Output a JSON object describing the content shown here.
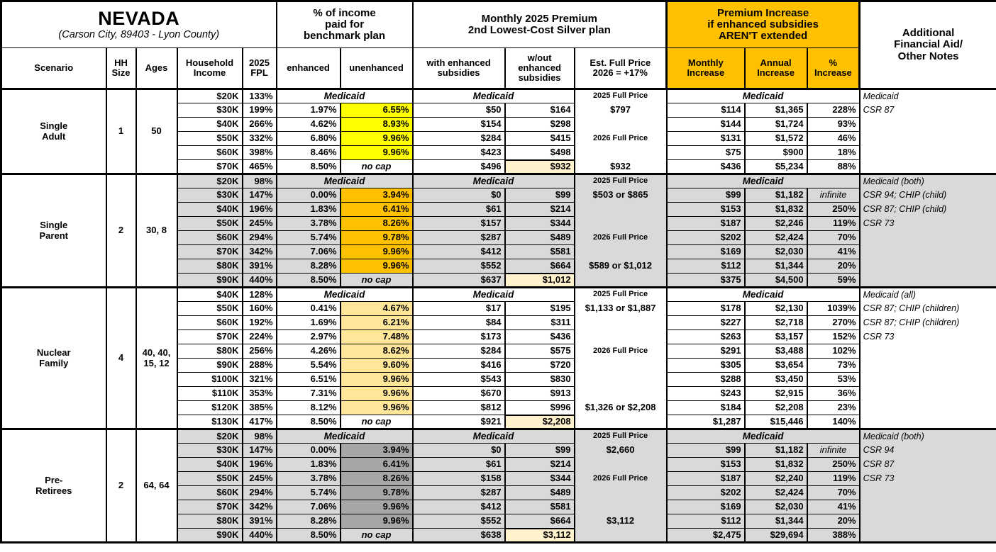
{
  "title": {
    "state": "NEVADA",
    "subtitle": "(Carson City, 89403 - Lyon County)"
  },
  "colors": {
    "header_accent": "#FFC000",
    "shaded_section": "#D9D9D9",
    "full_price_box": "#FFF2CC",
    "highlight_single_adult": "#FFFF00",
    "highlight_single_parent": "#FFC000",
    "highlight_nuclear_family": "#FFE699",
    "highlight_pre_retirees": "#A6A6A6"
  },
  "columns": {
    "scenario": "Scenario",
    "hh_size": "HH\nSize",
    "ages": "Ages",
    "income": "Household\nIncome",
    "fpl": "2025\nFPL",
    "pct_income_group": "% of income\npaid for\nbenchmark plan",
    "enhanced": "enhanced",
    "unenhanced": "unenhanced",
    "premium_group": "Monthly 2025 Premium\n2nd Lowest-Cost Silver plan",
    "with_sub": "with enhanced\nsubsidies",
    "without_sub": "w/out\nenhanced\nsubsidies",
    "est_full": "Est. Full Price\n2026 = +17%",
    "increase_group": "Premium Increase\nif enhanced subsidies\nAREN'T extended",
    "monthly": "Monthly\nIncrease",
    "annual": "Annual\nIncrease",
    "pct": "%\nIncrease",
    "notes": "Additional\nFinancial Aid/\nOther Notes"
  },
  "groups": [
    {
      "scenario": "Single\nAdult",
      "hh_size": "1",
      "ages": "50",
      "shaded": false,
      "unenhanced_highlight": "#FFFF00",
      "medicaid_label": "Medicaid",
      "rows": [
        {
          "income": "$20K",
          "fpl": "133%",
          "medicaid": true,
          "est": "2025 Full Price",
          "est_label": true,
          "note": "Medicaid"
        },
        {
          "income": "$30K",
          "fpl": "199%",
          "enhanced": "1.97%",
          "unenhanced": "6.55%",
          "with_sub": "$50",
          "without_sub": "$164",
          "est": "$797",
          "monthly": "$114",
          "annual": "$1,365",
          "pct": "228%",
          "note": "CSR 87"
        },
        {
          "income": "$40K",
          "fpl": "266%",
          "enhanced": "4.62%",
          "unenhanced": "8.93%",
          "with_sub": "$154",
          "without_sub": "$298",
          "monthly": "$144",
          "annual": "$1,724",
          "pct": "93%"
        },
        {
          "income": "$50K",
          "fpl": "332%",
          "enhanced": "6.80%",
          "unenhanced": "9.96%",
          "with_sub": "$284",
          "without_sub": "$415",
          "est": "2026 Full Price",
          "est_label": true,
          "monthly": "$131",
          "annual": "$1,572",
          "pct": "46%"
        },
        {
          "income": "$60K",
          "fpl": "398%",
          "enhanced": "8.46%",
          "unenhanced": "9.96%",
          "with_sub": "$423",
          "without_sub": "$498",
          "monthly": "$75",
          "annual": "$900",
          "pct": "18%"
        },
        {
          "income": "$70K",
          "fpl": "465%",
          "enhanced": "8.50%",
          "unenhanced": "no cap",
          "no_cap": true,
          "with_sub": "$496",
          "without_sub": "$932",
          "box": true,
          "est": "$932",
          "monthly": "$436",
          "annual": "$5,234",
          "pct": "88%"
        }
      ]
    },
    {
      "scenario": "Single\nParent",
      "hh_size": "2",
      "ages": "30, 8",
      "shaded": true,
      "unenhanced_highlight": "#FFC000",
      "medicaid_label": "Medicaid",
      "rows": [
        {
          "income": "$20K",
          "fpl": "98%",
          "medicaid": true,
          "est": "2025 Full Price",
          "est_label": true,
          "note": "Medicaid (both)"
        },
        {
          "income": "$30K",
          "fpl": "147%",
          "enhanced": "0.00%",
          "unenhanced": "3.94%",
          "with_sub": "$0",
          "without_sub": "$99",
          "est": "$503 or $865",
          "monthly": "$99",
          "annual": "$1,182",
          "pct": "infinite",
          "pct_italic": true,
          "note": "CSR 94; CHIP (child)"
        },
        {
          "income": "$40K",
          "fpl": "196%",
          "enhanced": "1.83%",
          "unenhanced": "6.41%",
          "with_sub": "$61",
          "without_sub": "$214",
          "monthly": "$153",
          "annual": "$1,832",
          "pct": "250%",
          "note": "CSR 87; CHIP (child)"
        },
        {
          "income": "$50K",
          "fpl": "245%",
          "enhanced": "3.78%",
          "unenhanced": "8.26%",
          "with_sub": "$157",
          "without_sub": "$344",
          "monthly": "$187",
          "annual": "$2,246",
          "pct": "119%",
          "note": "CSR 73"
        },
        {
          "income": "$60K",
          "fpl": "294%",
          "enhanced": "5.74%",
          "unenhanced": "9.78%",
          "with_sub": "$287",
          "without_sub": "$489",
          "est": "2026 Full Price",
          "est_label": true,
          "monthly": "$202",
          "annual": "$2,424",
          "pct": "70%"
        },
        {
          "income": "$70K",
          "fpl": "342%",
          "enhanced": "7.06%",
          "unenhanced": "9.96%",
          "with_sub": "$412",
          "without_sub": "$581",
          "monthly": "$169",
          "annual": "$2,030",
          "pct": "41%"
        },
        {
          "income": "$80K",
          "fpl": "391%",
          "enhanced": "8.28%",
          "unenhanced": "9.96%",
          "with_sub": "$552",
          "without_sub": "$664",
          "est": "$589 or $1,012",
          "monthly": "$112",
          "annual": "$1,344",
          "pct": "20%"
        },
        {
          "income": "$90K",
          "fpl": "440%",
          "enhanced": "8.50%",
          "unenhanced": "no cap",
          "no_cap": true,
          "with_sub": "$637",
          "without_sub": "$1,012",
          "box": true,
          "monthly": "$375",
          "annual": "$4,500",
          "pct": "59%"
        }
      ]
    },
    {
      "scenario": "Nuclear\nFamily",
      "hh_size": "4",
      "ages": "40, 40,\n15, 12",
      "shaded": false,
      "unenhanced_highlight": "#FFE699",
      "medicaid_label": "Medicaid",
      "rows": [
        {
          "income": "$40K",
          "fpl": "128%",
          "medicaid": true,
          "est": "2025 Full Price",
          "est_label": true,
          "note": "Medicaid (all)"
        },
        {
          "income": "$50K",
          "fpl": "160%",
          "enhanced": "0.41%",
          "unenhanced": "4.67%",
          "with_sub": "$17",
          "without_sub": "$195",
          "est": "$1,133 or $1,887",
          "monthly": "$178",
          "annual": "$2,130",
          "pct": "1039%",
          "note": "CSR 87; CHIP (children)"
        },
        {
          "income": "$60K",
          "fpl": "192%",
          "enhanced": "1.69%",
          "unenhanced": "6.21%",
          "with_sub": "$84",
          "without_sub": "$311",
          "monthly": "$227",
          "annual": "$2,718",
          "pct": "270%",
          "note": "CSR 87; CHIP (children)"
        },
        {
          "income": "$70K",
          "fpl": "224%",
          "enhanced": "2.97%",
          "unenhanced": "7.48%",
          "with_sub": "$173",
          "without_sub": "$436",
          "monthly": "$263",
          "annual": "$3,157",
          "pct": "152%",
          "note": "CSR 73"
        },
        {
          "income": "$80K",
          "fpl": "256%",
          "enhanced": "4.26%",
          "unenhanced": "8.62%",
          "with_sub": "$284",
          "without_sub": "$575",
          "est": "2026 Full Price",
          "est_label": true,
          "monthly": "$291",
          "annual": "$3,488",
          "pct": "102%"
        },
        {
          "income": "$90K",
          "fpl": "288%",
          "enhanced": "5.54%",
          "unenhanced": "9.60%",
          "with_sub": "$416",
          "without_sub": "$720",
          "monthly": "$305",
          "annual": "$3,654",
          "pct": "73%"
        },
        {
          "income": "$100K",
          "fpl": "321%",
          "enhanced": "6.51%",
          "unenhanced": "9.96%",
          "with_sub": "$543",
          "without_sub": "$830",
          "monthly": "$288",
          "annual": "$3,450",
          "pct": "53%"
        },
        {
          "income": "$110K",
          "fpl": "353%",
          "enhanced": "7.31%",
          "unenhanced": "9.96%",
          "with_sub": "$670",
          "without_sub": "$913",
          "monthly": "$243",
          "annual": "$2,915",
          "pct": "36%"
        },
        {
          "income": "$120K",
          "fpl": "385%",
          "enhanced": "8.12%",
          "unenhanced": "9.96%",
          "with_sub": "$812",
          "without_sub": "$996",
          "est": "$1,326 or $2,208",
          "monthly": "$184",
          "annual": "$2,208",
          "pct": "23%"
        },
        {
          "income": "$130K",
          "fpl": "417%",
          "enhanced": "8.50%",
          "unenhanced": "no cap",
          "no_cap": true,
          "with_sub": "$921",
          "without_sub": "$2,208",
          "box": true,
          "monthly": "$1,287",
          "annual": "$15,446",
          "pct": "140%"
        }
      ]
    },
    {
      "scenario": "Pre-\nRetirees",
      "hh_size": "2",
      "ages": "64, 64",
      "shaded": true,
      "unenhanced_highlight": "#A6A6A6",
      "medicaid_label": "Medicaid",
      "rows": [
        {
          "income": "$20K",
          "fpl": "98%",
          "medicaid": true,
          "est": "2025 Full Price",
          "est_label": true,
          "note": "Medicaid (both)"
        },
        {
          "income": "$30K",
          "fpl": "147%",
          "enhanced": "0.00%",
          "unenhanced": "3.94%",
          "with_sub": "$0",
          "without_sub": "$99",
          "est": "$2,660",
          "monthly": "$99",
          "annual": "$1,182",
          "pct": "infinite",
          "pct_italic": true,
          "note": "CSR 94"
        },
        {
          "income": "$40K",
          "fpl": "196%",
          "enhanced": "1.83%",
          "unenhanced": "6.41%",
          "with_sub": "$61",
          "without_sub": "$214",
          "monthly": "$153",
          "annual": "$1,832",
          "pct": "250%",
          "note": "CSR 87"
        },
        {
          "income": "$50K",
          "fpl": "245%",
          "enhanced": "3.78%",
          "unenhanced": "8.26%",
          "with_sub": "$158",
          "without_sub": "$344",
          "est": "2026 Full Price",
          "est_label": true,
          "monthly": "$187",
          "annual": "$2,240",
          "pct": "119%",
          "note": "CSR 73"
        },
        {
          "income": "$60K",
          "fpl": "294%",
          "enhanced": "5.74%",
          "unenhanced": "9.78%",
          "with_sub": "$287",
          "without_sub": "$489",
          "monthly": "$202",
          "annual": "$2,424",
          "pct": "70%"
        },
        {
          "income": "$70K",
          "fpl": "342%",
          "enhanced": "7.06%",
          "unenhanced": "9.96%",
          "with_sub": "$412",
          "without_sub": "$581",
          "monthly": "$169",
          "annual": "$2,030",
          "pct": "41%"
        },
        {
          "income": "$80K",
          "fpl": "391%",
          "enhanced": "8.28%",
          "unenhanced": "9.96%",
          "with_sub": "$552",
          "without_sub": "$664",
          "est": "$3,112",
          "monthly": "$112",
          "annual": "$1,344",
          "pct": "20%"
        },
        {
          "income": "$90K",
          "fpl": "440%",
          "enhanced": "8.50%",
          "unenhanced": "no cap",
          "no_cap": true,
          "with_sub": "$638",
          "without_sub": "$3,112",
          "box": true,
          "monthly": "$2,475",
          "annual": "$29,694",
          "pct": "388%"
        }
      ]
    }
  ]
}
